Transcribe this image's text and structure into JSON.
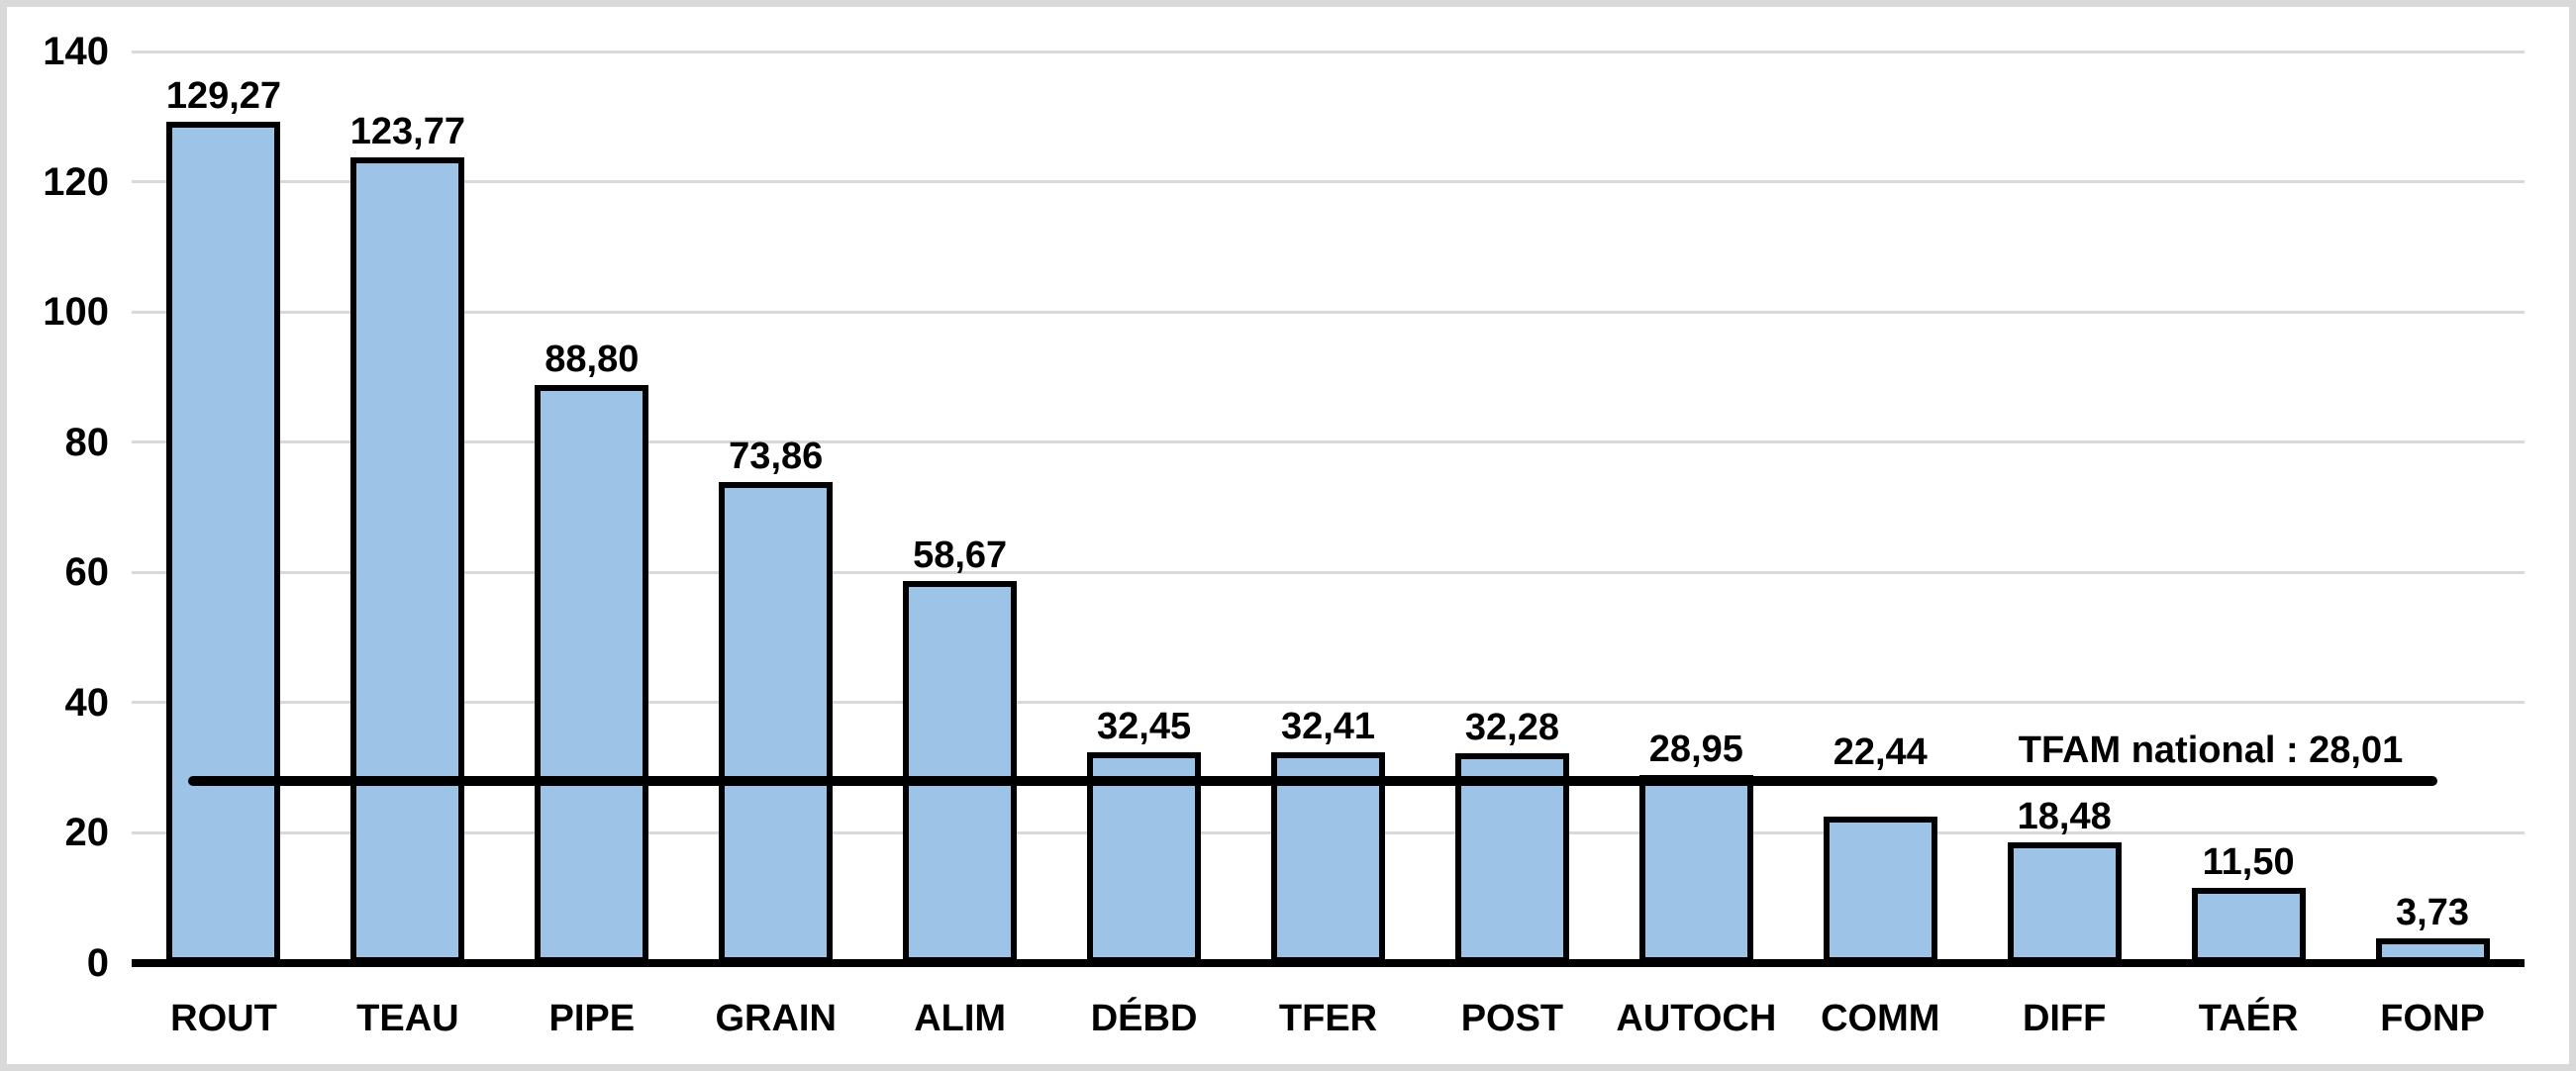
{
  "chart_data": {
    "type": "bar",
    "categories": [
      "ROUT",
      "TEAU",
      "PIPE",
      "GRAIN",
      "ALIM",
      "DÉBD",
      "TFER",
      "POST",
      "AUTOCH",
      "COMM",
      "DIFF",
      "TAÉR",
      "FONP"
    ],
    "values": [
      129.27,
      123.77,
      88.8,
      73.86,
      58.67,
      32.45,
      32.41,
      32.28,
      28.95,
      22.44,
      18.48,
      11.5,
      3.73
    ],
    "value_labels": [
      "129,27",
      "123,77",
      "88,80",
      "73,86",
      "58,67",
      "32,45",
      "32,41",
      "32,28",
      "28,95",
      "22,44",
      "18,48",
      "11,50",
      "3,73"
    ],
    "title": "",
    "xlabel": "",
    "ylabel": "",
    "ylim": [
      0,
      140
    ],
    "y_ticks": [
      0,
      20,
      40,
      60,
      80,
      100,
      120,
      140
    ],
    "y_tick_labels": [
      "0",
      "20",
      "40",
      "60",
      "80",
      "100",
      "120",
      "140"
    ],
    "grid": true,
    "legend": "none",
    "reference_line": {
      "value": 28.01,
      "label": "TFAM national : 28,01"
    },
    "colors": {
      "bar_fill": "#9dc3e6",
      "bar_border": "#000000",
      "gridline": "#d9d9d9",
      "axis_line": "#000000",
      "reference_line": "#000000",
      "label_text": "#000000",
      "background": "#ffffff",
      "frame_border": "#d9d9d9"
    }
  }
}
